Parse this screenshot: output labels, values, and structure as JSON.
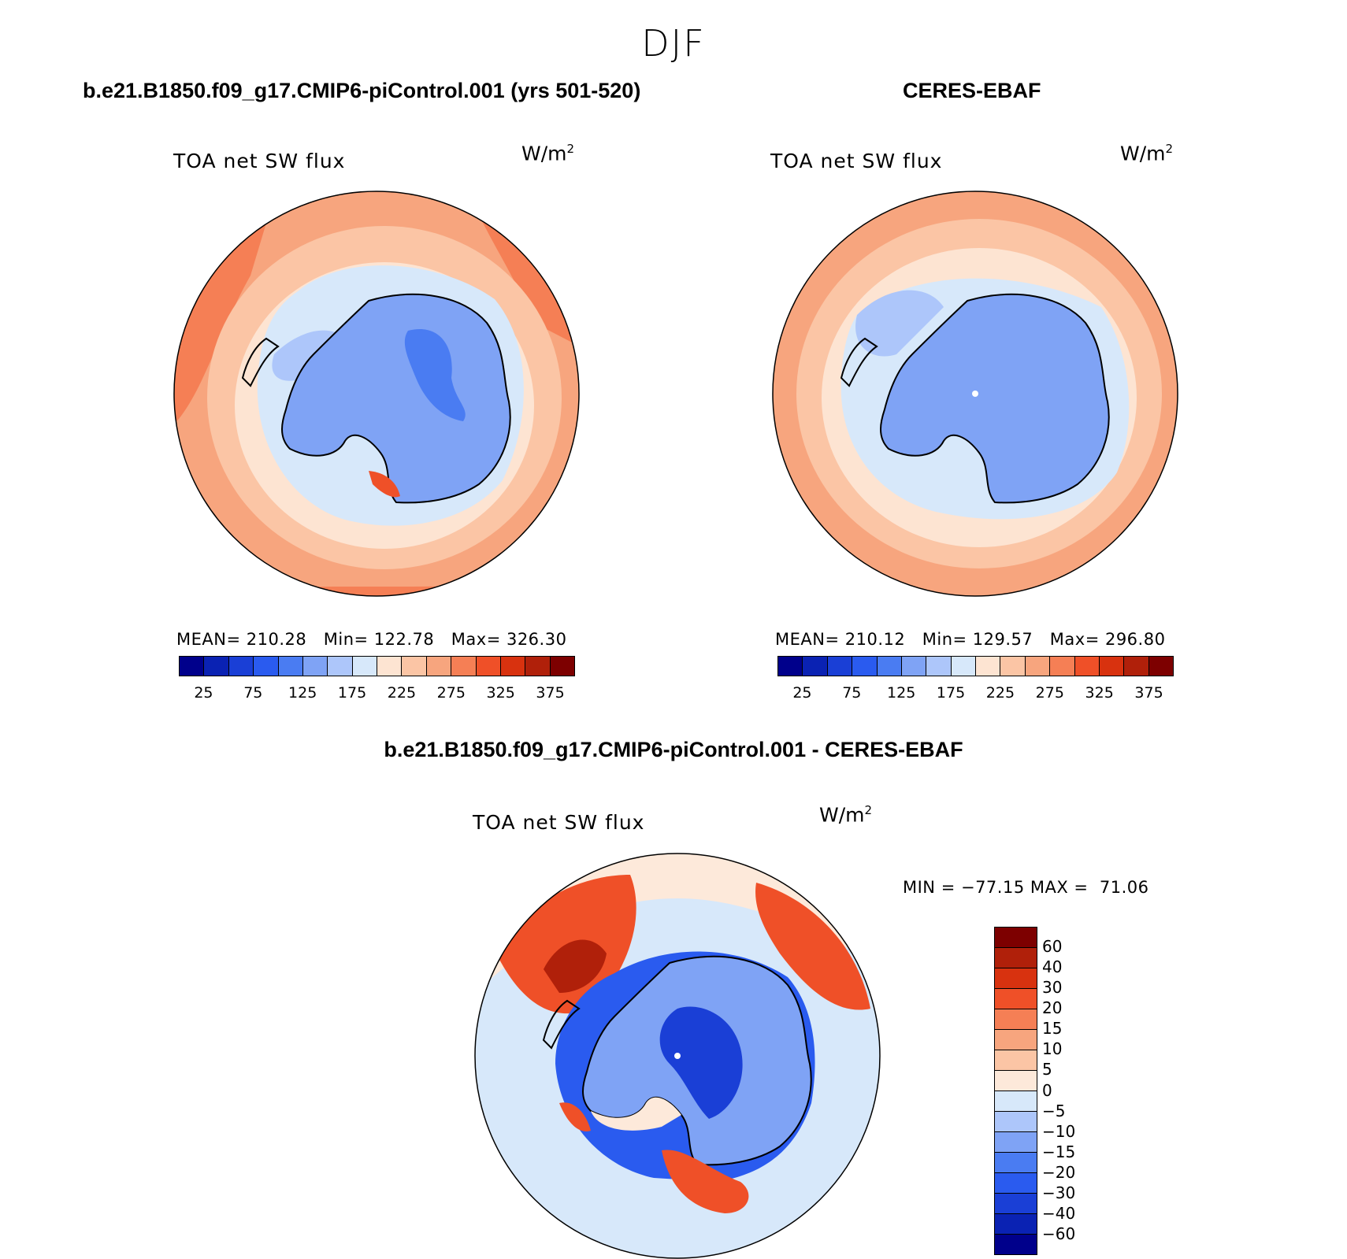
{
  "figure": {
    "season": "DJF",
    "panels": [
      {
        "title": "b.e21.B1850.f09_g17.CMIP6-piControl.001 (yrs 501-520)",
        "variable": "TOA net SW flux",
        "units_base": "W/m",
        "units_exp": "2",
        "stats": "MEAN= 210.28   Min= 122.78   Max= 326.30"
      },
      {
        "title": "CERES-EBAF",
        "variable": "TOA net SW flux",
        "units_base": "W/m",
        "units_exp": "2",
        "stats": "MEAN= 210.12   Min= 129.57   Max= 296.80"
      },
      {
        "title": "b.e21.B1850.f09_g17.CMIP6-piControl.001 - CERES-EBAF",
        "variable": "TOA net SW flux",
        "units_base": "W/m",
        "units_exp": "2",
        "stats": "MIN = −77.15 MAX =  71.06"
      }
    ],
    "abs_colorbar": {
      "tick_labels": [
        "25",
        "75",
        "125",
        "175",
        "225",
        "275",
        "325",
        "375"
      ],
      "colors": [
        "#00008b",
        "#0a22b3",
        "#1a3fd6",
        "#2a5bef",
        "#4a7cf2",
        "#7fa3f5",
        "#adc6fa",
        "#d7e8fa",
        "#fde4d2",
        "#fbc5a5",
        "#f7a57e",
        "#f57f55",
        "#ef5028",
        "#d8320f",
        "#b0200a",
        "#7d0000"
      ]
    },
    "diff_colorbar": {
      "tick_labels": [
        "60",
        "40",
        "30",
        "20",
        "15",
        "10",
        "5",
        "0",
        "−5",
        "−10",
        "−15",
        "−20",
        "−30",
        "−40",
        "−60"
      ],
      "colors": [
        "#7d0000",
        "#b0200a",
        "#d8320f",
        "#ef5028",
        "#f57f55",
        "#f7a57e",
        "#fbc5a5",
        "#fde9da",
        "#d7e8fa",
        "#adc6fa",
        "#7fa3f5",
        "#4a7cf2",
        "#2a5bef",
        "#1a3fd6",
        "#0a22b3",
        "#00008b"
      ]
    },
    "map_colors": {
      "ring_outer": "#f7a57e",
      "ring_mid": "#fbc5a5",
      "ring_inner": "#fde4d2",
      "ice_edge": "#d7e8fa",
      "shelf": "#adc6fa",
      "continent": "#7fa3f5",
      "plateau": "#4a7cf2",
      "warm_patch": "#f57f55",
      "hot_patch": "#ef5028",
      "diff_base": "#d7e8fa",
      "diff_pos": "#fde9da",
      "diff_red": "#ef5028",
      "diff_darkred": "#b0200a",
      "diff_blue": "#4a7cf2",
      "diff_darkblue": "#1a3fd6",
      "coast": "#000000"
    }
  }
}
